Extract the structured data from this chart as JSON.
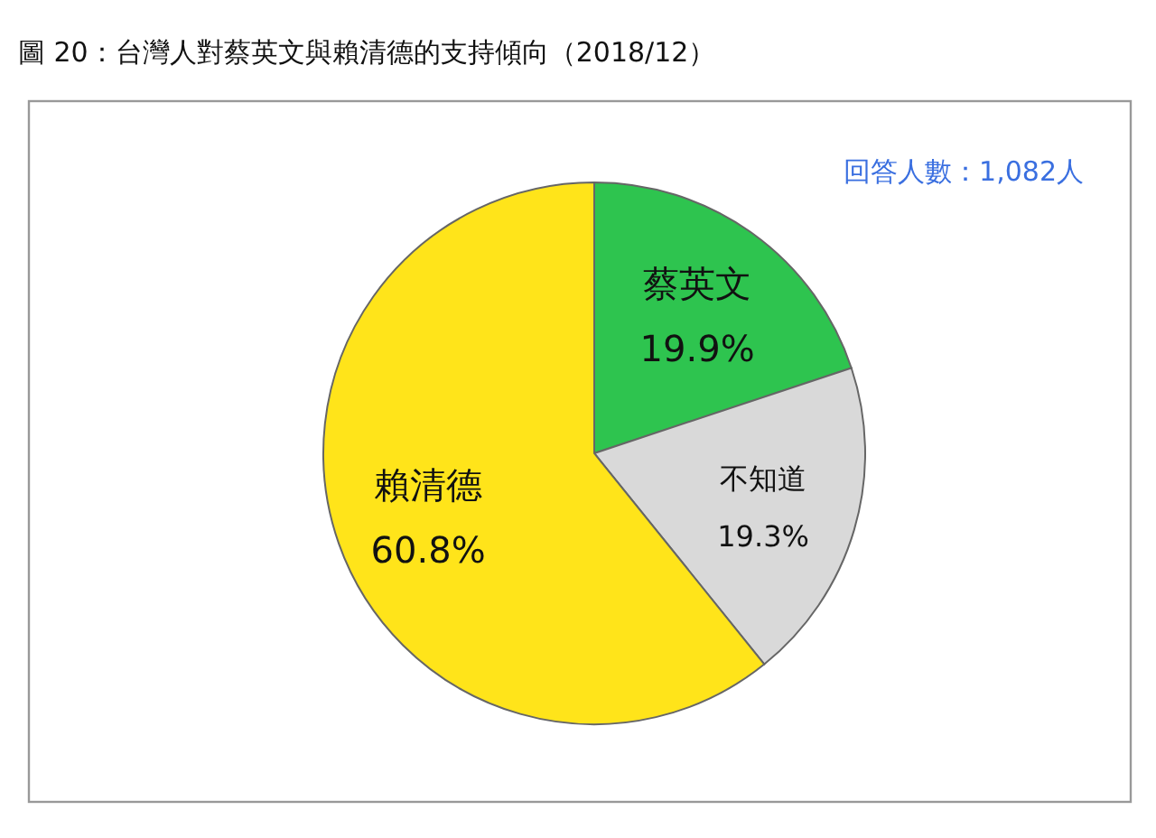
{
  "chart_data": {
    "type": "pie",
    "title": "圖 20：台灣人對蔡英文與賴清德的支持傾向（2018/12）",
    "categories": [
      "蔡英文",
      "不知道",
      "賴清德"
    ],
    "values": [
      19.9,
      19.3,
      60.8
    ],
    "colors": [
      "#2ec44f",
      "#d9d9d9",
      "#ffe41a"
    ],
    "value_labels": [
      "19.9%",
      "19.3%",
      "60.8%"
    ],
    "annotations": [
      "回答人數：1,082人"
    ],
    "legend": false
  }
}
